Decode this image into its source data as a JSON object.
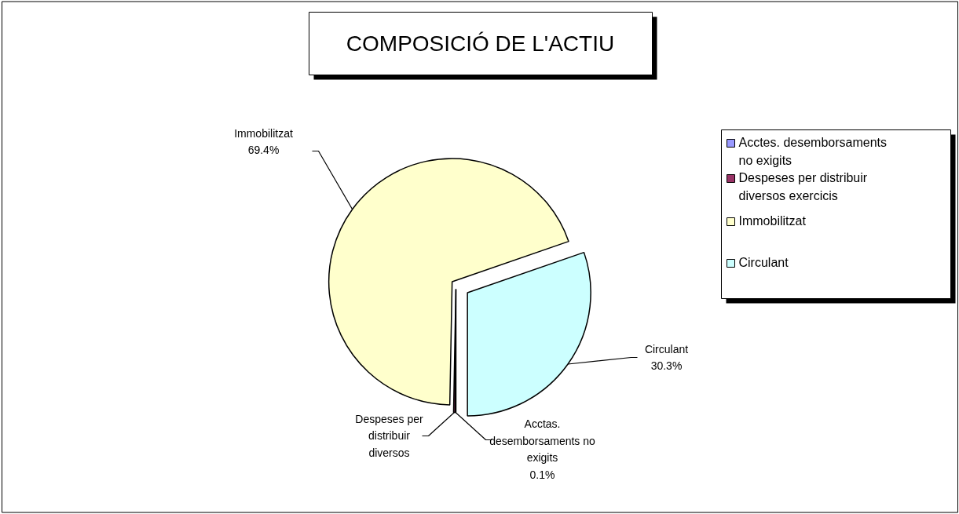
{
  "chart_data": {
    "type": "pie",
    "title": "COMPOSICIÓ DE L'ACTIU",
    "categories": [
      "Acctes. desemborsaments no exigits",
      "Despeses per distribuir diversos exercicis",
      "Immobilitzat",
      "Circulant"
    ],
    "values": [
      0.1,
      0.2,
      69.4,
      30.3
    ],
    "colors": [
      "#9999ff",
      "#993366",
      "#ffffcc",
      "#ccffff"
    ],
    "value_labels": [
      "Acctas.\ndesemborsaments no\nexigits\n0.1%",
      "Despeses per\ndistribuir\ndiversos",
      "Immobilitzat\n69.4%",
      "Circulant\n30.3%"
    ],
    "legend": "right"
  }
}
